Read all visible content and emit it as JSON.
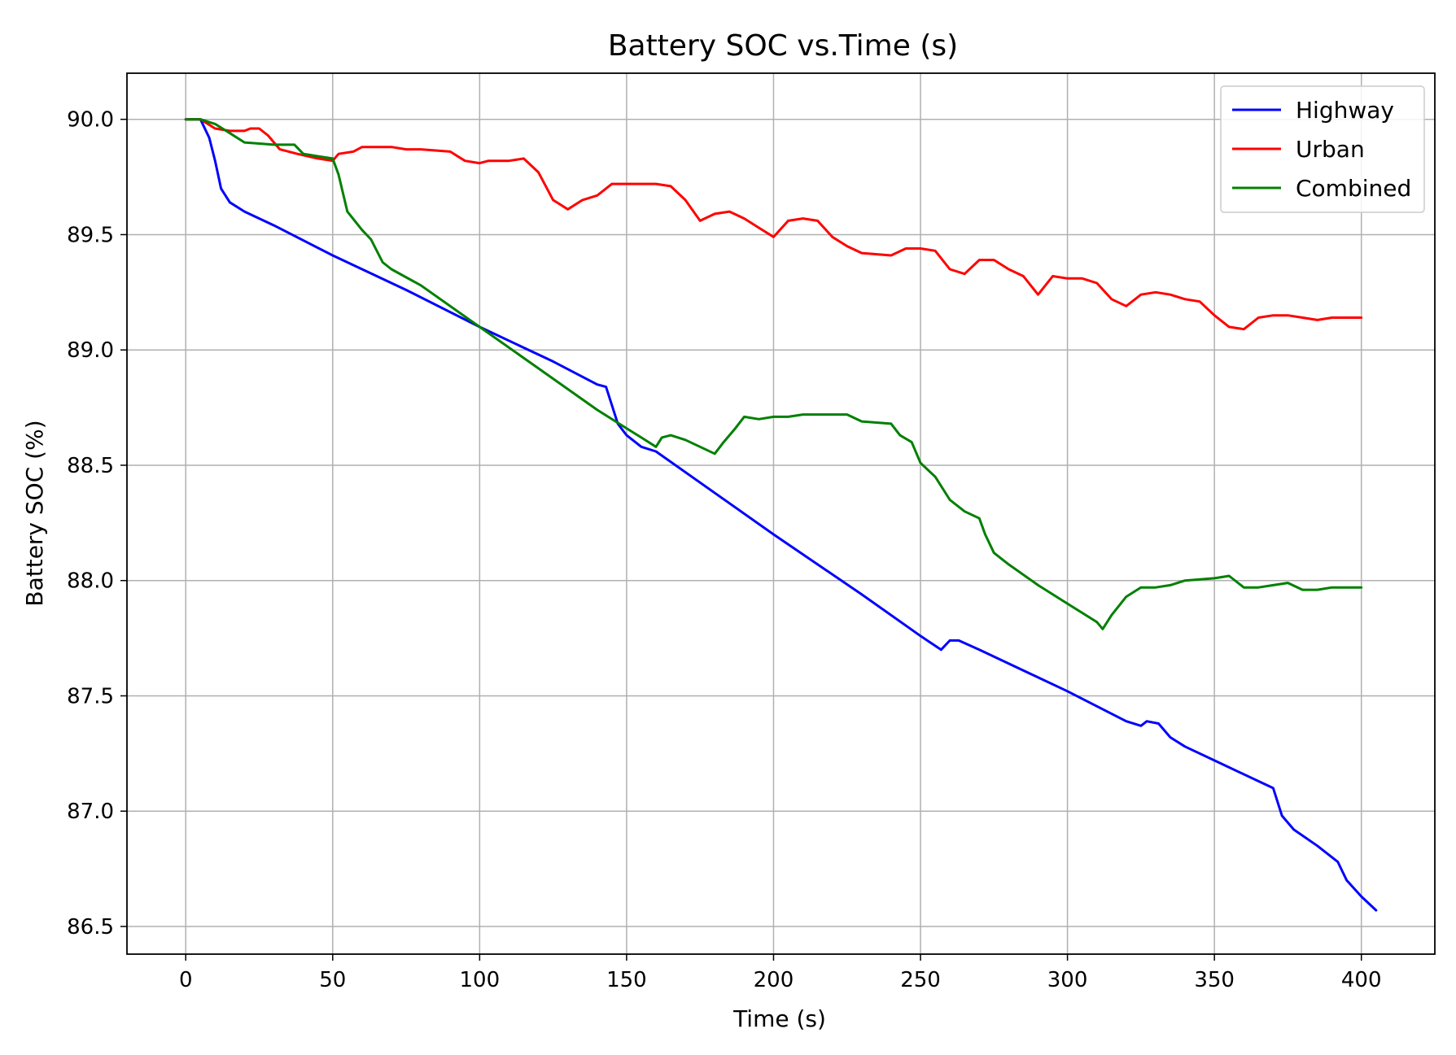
{
  "chart_data": {
    "type": "line",
    "title": "Battery SOC vs.Time (s)",
    "xlabel": "Time (s)",
    "ylabel": "Battery SOC (%)",
    "xlim": [
      -20,
      425
    ],
    "ylim": [
      86.38,
      90.2
    ],
    "xticks": [
      0,
      50,
      100,
      150,
      200,
      250,
      300,
      350,
      400
    ],
    "yticks": [
      86.5,
      87.0,
      87.5,
      88.0,
      88.5,
      89.0,
      89.5,
      90.0
    ],
    "grid": true,
    "legend_position": "top-right",
    "series": [
      {
        "name": "Highway",
        "color": "#0000ff",
        "points": [
          [
            0,
            90.0
          ],
          [
            5,
            90.0
          ],
          [
            8,
            89.92
          ],
          [
            10,
            89.82
          ],
          [
            12,
            89.7
          ],
          [
            15,
            89.64
          ],
          [
            20,
            89.6
          ],
          [
            30,
            89.54
          ],
          [
            50,
            89.41
          ],
          [
            75,
            89.26
          ],
          [
            100,
            89.1
          ],
          [
            125,
            88.95
          ],
          [
            140,
            88.85
          ],
          [
            143,
            88.84
          ],
          [
            145,
            88.76
          ],
          [
            147,
            88.68
          ],
          [
            150,
            88.63
          ],
          [
            155,
            88.58
          ],
          [
            160,
            88.56
          ],
          [
            200,
            88.2
          ],
          [
            230,
            87.94
          ],
          [
            250,
            87.76
          ],
          [
            257,
            87.7
          ],
          [
            260,
            87.74
          ],
          [
            263,
            87.74
          ],
          [
            270,
            87.7
          ],
          [
            300,
            87.52
          ],
          [
            320,
            87.39
          ],
          [
            325,
            87.37
          ],
          [
            327,
            87.39
          ],
          [
            331,
            87.38
          ],
          [
            335,
            87.32
          ],
          [
            340,
            87.28
          ],
          [
            350,
            87.22
          ],
          [
            365,
            87.13
          ],
          [
            370,
            87.1
          ],
          [
            373,
            86.98
          ],
          [
            377,
            86.92
          ],
          [
            385,
            86.85
          ],
          [
            392,
            86.78
          ],
          [
            395,
            86.7
          ],
          [
            400,
            86.63
          ],
          [
            405,
            86.57
          ]
        ]
      },
      {
        "name": "Urban",
        "color": "#ff0000",
        "points": [
          [
            0,
            90.0
          ],
          [
            5,
            90.0
          ],
          [
            10,
            89.96
          ],
          [
            15,
            89.95
          ],
          [
            20,
            89.95
          ],
          [
            22,
            89.96
          ],
          [
            25,
            89.96
          ],
          [
            28,
            89.93
          ],
          [
            32,
            89.87
          ],
          [
            38,
            89.85
          ],
          [
            45,
            89.83
          ],
          [
            50,
            89.82
          ],
          [
            52,
            89.85
          ],
          [
            57,
            89.86
          ],
          [
            60,
            89.88
          ],
          [
            70,
            89.88
          ],
          [
            75,
            89.87
          ],
          [
            80,
            89.87
          ],
          [
            90,
            89.86
          ],
          [
            95,
            89.82
          ],
          [
            100,
            89.81
          ],
          [
            103,
            89.82
          ],
          [
            110,
            89.82
          ],
          [
            115,
            89.83
          ],
          [
            120,
            89.77
          ],
          [
            125,
            89.65
          ],
          [
            130,
            89.61
          ],
          [
            135,
            89.65
          ],
          [
            140,
            89.67
          ],
          [
            145,
            89.72
          ],
          [
            150,
            89.72
          ],
          [
            160,
            89.72
          ],
          [
            165,
            89.71
          ],
          [
            170,
            89.65
          ],
          [
            175,
            89.56
          ],
          [
            180,
            89.59
          ],
          [
            185,
            89.6
          ],
          [
            190,
            89.57
          ],
          [
            195,
            89.53
          ],
          [
            200,
            89.49
          ],
          [
            205,
            89.56
          ],
          [
            210,
            89.57
          ],
          [
            215,
            89.56
          ],
          [
            220,
            89.49
          ],
          [
            225,
            89.45
          ],
          [
            230,
            89.42
          ],
          [
            240,
            89.41
          ],
          [
            245,
            89.44
          ],
          [
            250,
            89.44
          ],
          [
            255,
            89.43
          ],
          [
            260,
            89.35
          ],
          [
            265,
            89.33
          ],
          [
            270,
            89.39
          ],
          [
            275,
            89.39
          ],
          [
            280,
            89.35
          ],
          [
            285,
            89.32
          ],
          [
            290,
            89.24
          ],
          [
            295,
            89.32
          ],
          [
            300,
            89.31
          ],
          [
            305,
            89.31
          ],
          [
            310,
            89.29
          ],
          [
            315,
            89.22
          ],
          [
            320,
            89.19
          ],
          [
            325,
            89.24
          ],
          [
            330,
            89.25
          ],
          [
            335,
            89.24
          ],
          [
            340,
            89.22
          ],
          [
            345,
            89.21
          ],
          [
            350,
            89.15
          ],
          [
            355,
            89.1
          ],
          [
            360,
            89.09
          ],
          [
            365,
            89.14
          ],
          [
            370,
            89.15
          ],
          [
            375,
            89.15
          ],
          [
            380,
            89.14
          ],
          [
            385,
            89.13
          ],
          [
            390,
            89.14
          ],
          [
            400,
            89.14
          ]
        ]
      },
      {
        "name": "Combined",
        "color": "#008000",
        "points": [
          [
            0,
            90.0
          ],
          [
            5,
            90.0
          ],
          [
            10,
            89.98
          ],
          [
            15,
            89.94
          ],
          [
            20,
            89.9
          ],
          [
            30,
            89.89
          ],
          [
            37,
            89.89
          ],
          [
            40,
            89.85
          ],
          [
            45,
            89.84
          ],
          [
            50,
            89.83
          ],
          [
            52,
            89.76
          ],
          [
            55,
            89.6
          ],
          [
            60,
            89.52
          ],
          [
            63,
            89.48
          ],
          [
            67,
            89.38
          ],
          [
            70,
            89.35
          ],
          [
            80,
            89.28
          ],
          [
            100,
            89.1
          ],
          [
            120,
            88.92
          ],
          [
            140,
            88.74
          ],
          [
            150,
            88.66
          ],
          [
            155,
            88.62
          ],
          [
            160,
            88.58
          ],
          [
            162,
            88.62
          ],
          [
            165,
            88.63
          ],
          [
            170,
            88.61
          ],
          [
            175,
            88.58
          ],
          [
            180,
            88.55
          ],
          [
            183,
            88.6
          ],
          [
            187,
            88.66
          ],
          [
            190,
            88.71
          ],
          [
            195,
            88.7
          ],
          [
            200,
            88.71
          ],
          [
            205,
            88.71
          ],
          [
            210,
            88.72
          ],
          [
            225,
            88.72
          ],
          [
            230,
            88.69
          ],
          [
            240,
            88.68
          ],
          [
            243,
            88.63
          ],
          [
            247,
            88.6
          ],
          [
            250,
            88.51
          ],
          [
            255,
            88.45
          ],
          [
            260,
            88.35
          ],
          [
            265,
            88.3
          ],
          [
            270,
            88.27
          ],
          [
            272,
            88.2
          ],
          [
            275,
            88.12
          ],
          [
            280,
            88.07
          ],
          [
            290,
            87.98
          ],
          [
            300,
            87.9
          ],
          [
            310,
            87.82
          ],
          [
            312,
            87.79
          ],
          [
            315,
            87.85
          ],
          [
            320,
            87.93
          ],
          [
            325,
            87.97
          ],
          [
            330,
            87.97
          ],
          [
            335,
            87.98
          ],
          [
            340,
            88.0
          ],
          [
            350,
            88.01
          ],
          [
            355,
            88.02
          ],
          [
            360,
            87.97
          ],
          [
            365,
            87.97
          ],
          [
            370,
            87.98
          ],
          [
            375,
            87.99
          ],
          [
            380,
            87.96
          ],
          [
            385,
            87.96
          ],
          [
            390,
            87.97
          ],
          [
            400,
            87.97
          ]
        ]
      }
    ]
  }
}
